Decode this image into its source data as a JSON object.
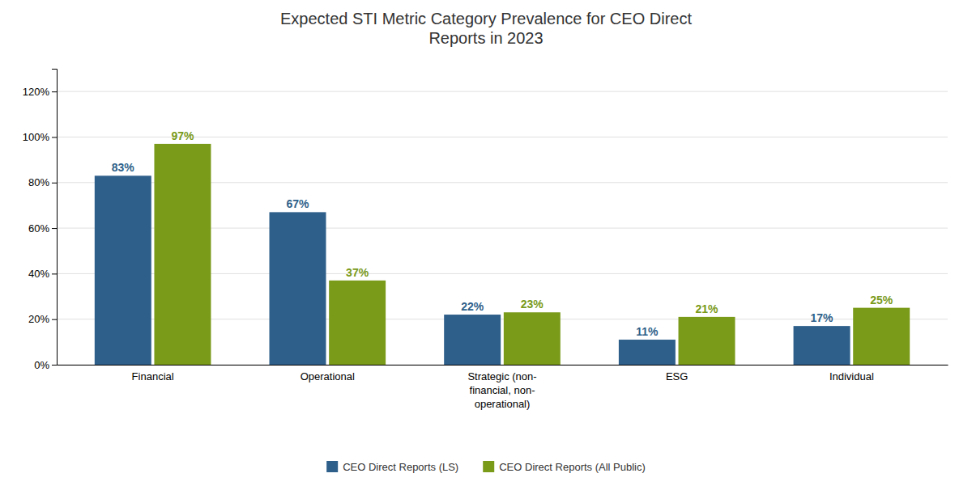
{
  "chart_data": {
    "type": "bar",
    "title": "Expected STI Metric Category Prevalence for CEO Direct\nReports in 2023",
    "categories": [
      "Financial",
      "Operational",
      "Strategic (non-\nfinancial, non-\noperational)",
      "ESG",
      "Individual"
    ],
    "series": [
      {
        "name": "CEO Direct Reports (LS)",
        "color": "#2E5F8A",
        "values": [
          0.83,
          0.67,
          0.22,
          0.11,
          0.17
        ],
        "value_labels": [
          "83%",
          "67%",
          "22%",
          "11%",
          "17%"
        ]
      },
      {
        "name": "CEO Direct Reports (All Public)",
        "color": "#7A9A1A",
        "values": [
          0.97,
          0.37,
          0.23,
          0.21,
          0.25
        ],
        "value_labels": [
          "97%",
          "37%",
          "23%",
          "21%",
          "25%"
        ]
      }
    ],
    "ylim": [
      0,
      1.3
    ],
    "yticks": [
      {
        "value": 0.0,
        "label": "0%"
      },
      {
        "value": 0.2,
        "label": "20%"
      },
      {
        "value": 0.4,
        "label": "40%"
      },
      {
        "value": 0.6,
        "label": "60%"
      },
      {
        "value": 0.8,
        "label": "80%"
      },
      {
        "value": 1.0,
        "label": "100%"
      },
      {
        "value": 1.2,
        "label": "120%"
      }
    ],
    "grid": true,
    "data_labels": true,
    "legend": "bottom"
  }
}
